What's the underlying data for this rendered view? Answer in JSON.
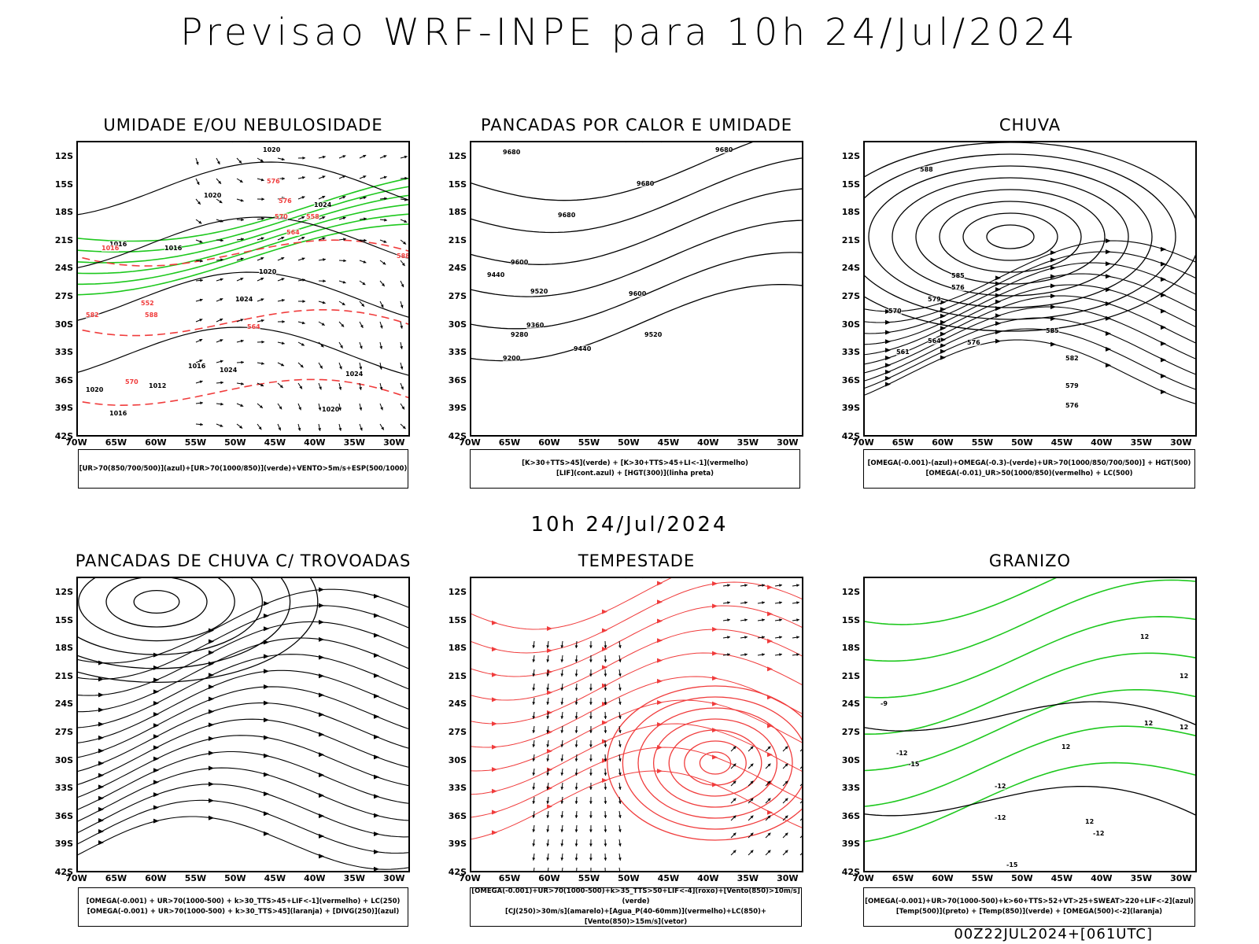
{
  "title": "Previsao WRF-INPE  para 10h 24/Jul/2024",
  "subtitle": "10h 24/Jul/2024",
  "footer": "00Z22JUL2024+[061UTC]",
  "axes": {
    "lat_labels": [
      "12S",
      "15S",
      "18S",
      "21S",
      "24S",
      "27S",
      "30S",
      "33S",
      "36S",
      "39S",
      "42S"
    ],
    "lon_labels": [
      "70W",
      "65W",
      "60W",
      "55W",
      "50W",
      "45W",
      "40W",
      "35W",
      "30W"
    ]
  },
  "colors": {
    "green": "#1ec81e",
    "red": "#f03c3c",
    "blue": "#2846f0",
    "lavender": "#aaa8f0",
    "yellow": "#e6dc32",
    "darkgreen": "#1e8c1e",
    "darkteal": "#1e3c3c",
    "orange": "#f08c28"
  },
  "panels": [
    {
      "id": "umidade",
      "title": "UMIDADE E/OU NEBULOSIDADE",
      "legend": [
        "[UR>70(850/700/500)](azul)+[UR>70(1000/850)](verde)+VENTO>5m/s+ESP(500/1000)"
      ],
      "contour_labels": [
        "1020",
        "1020",
        "1024",
        "1016",
        "1016",
        "1024",
        "1020",
        "1024",
        "1024",
        "1016",
        "1012",
        "1016",
        "1020",
        "1020",
        "576",
        "570",
        "564",
        "558",
        "552",
        "582",
        "588",
        "564",
        "570",
        "576",
        "588",
        "1016"
      ]
    },
    {
      "id": "pancadas_calor",
      "title": "PANCADAS POR CALOR E UMIDADE",
      "legend": [
        "[K>30+TTS>45](verde) + [K>30+TTS>45+LI<-1](vermelho)",
        "[LIF](cont.azul) + [HGT(300)](linha preta)"
      ],
      "contour_labels": [
        "9680",
        "9680",
        "9680",
        "9680",
        "9600",
        "9520",
        "9600",
        "9440",
        "9360",
        "9280",
        "9520",
        "9440",
        "9200"
      ]
    },
    {
      "id": "chuva",
      "title": "CHUVA",
      "legend": [
        "[OMEGA(-0.001)-(azul)+OMEGA(-0.3)-(verde)+UR>70(1000/850/700/500)] + HGT(500)",
        "[OMEGA(-0.01)_UR>50(1000/850)(vermelho) + LC(500)"
      ],
      "contour_labels": [
        "588",
        "585",
        "579",
        "576",
        "570",
        "561",
        "564",
        "576",
        "585",
        "582",
        "579",
        "576"
      ]
    },
    {
      "id": "pancadas_trovoadas",
      "title": "PANCADAS DE CHUVA C/ TROVOADAS",
      "legend": [
        "[OMEGA(-0.001) + UR>70(1000-500) + k>30_TTS>45+LIF<-1](vermelho) + LC(250)",
        "[OMEGA(-0.001) + UR>70(1000-500) + k>30_TTS>45](laranja) + [DIVG(250)](azul)"
      ],
      "contour_labels": []
    },
    {
      "id": "tempestade",
      "title": "TEMPESTADE",
      "legend": [
        "[OMEGA(-0.001)+UR>70(1000-500)+k>35_TTS>50+LIF<-4](roxo)+[Vento(850)>10m/s](verde)",
        "[CJ(250)>30m/s](amarelo)+[Agua_P(40-60mm)](vermelho)+LC(850)+[Vento(850)>15m/s](vetor)"
      ],
      "contour_labels": []
    },
    {
      "id": "granizo",
      "title": "GRANIZO",
      "legend": [
        "[OMEGA(-0.001)+UR>70(1000-500)+k>60+TTS>52+VT>25+SWEAT>220+LIF<-2](azul)",
        "[Temp(500)](preto) + [Temp(850)](verde) + [OMEGA(500)<-2](laranja)"
      ],
      "contour_labels": [
        "-12",
        "-15",
        "-12",
        "-12",
        "-9",
        "-12",
        "-15",
        "12",
        "12",
        "12",
        "12",
        "12",
        "12"
      ]
    }
  ]
}
